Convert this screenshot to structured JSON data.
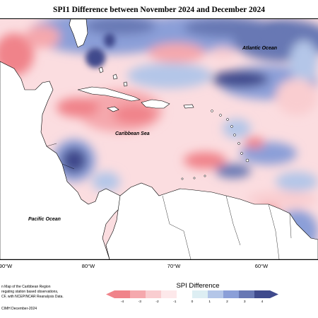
{
  "title": "SPI1 Difference between November 2024 and December 2024",
  "map_labels": {
    "atlantic": "Atlantic Ocean",
    "caribbean": "Caribbean Sea",
    "pacific": "Pacific Ocean"
  },
  "longitude_ticks": [
    "90°W",
    "80°W",
    "70°W",
    "60°W"
  ],
  "credit_lines": [
    "n Map of the Caribbean Region",
    "regating station based observations,",
    "CF, with NCEP/NCAR Reanalysis Data.",
    "CIMH December-2024"
  ],
  "legend": {
    "title": "SPI Difference",
    "ticks": [
      "-4",
      "-3",
      "-2",
      "-1",
      "0",
      "1",
      "2",
      "3",
      "4"
    ],
    "colors": [
      "#f0838a",
      "#f5a8ad",
      "#f9cdd0",
      "#fde8ea",
      "#ddeef3",
      "#b4c6e8",
      "#8b9fd8",
      "#6878b4",
      "#3f4a8c"
    ]
  },
  "colors": {
    "dry_strong": "#f0838a",
    "dry_light": "#fbdde0",
    "wet_light": "#c7d3ee",
    "wet_strong": "#3f4a8c",
    "land": "#ffffff",
    "coast": "#000000"
  }
}
